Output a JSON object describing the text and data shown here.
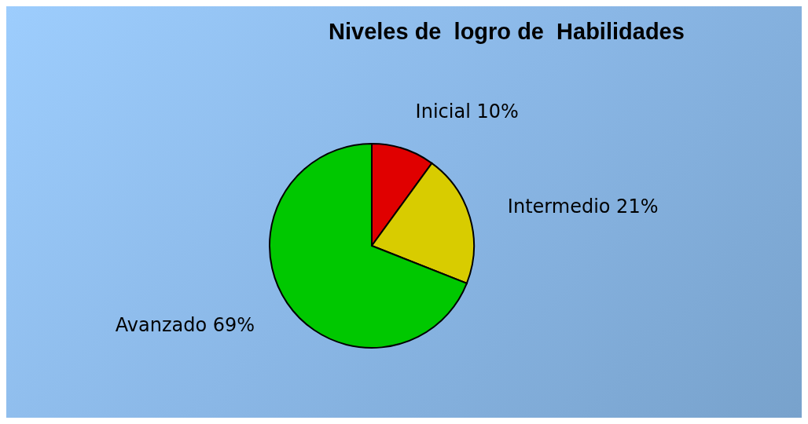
{
  "chart_data": {
    "type": "pie",
    "title": "Niveles de  logro de  Habilidades",
    "categories": [
      "Inicial",
      "Intermedio",
      "Avanzado"
    ],
    "values": [
      10,
      21,
      69
    ],
    "value_labels": [
      "10%",
      "21%",
      "69%"
    ],
    "colors": [
      "#e00000",
      "#d8cc00",
      "#00c800"
    ],
    "legend": false
  }
}
